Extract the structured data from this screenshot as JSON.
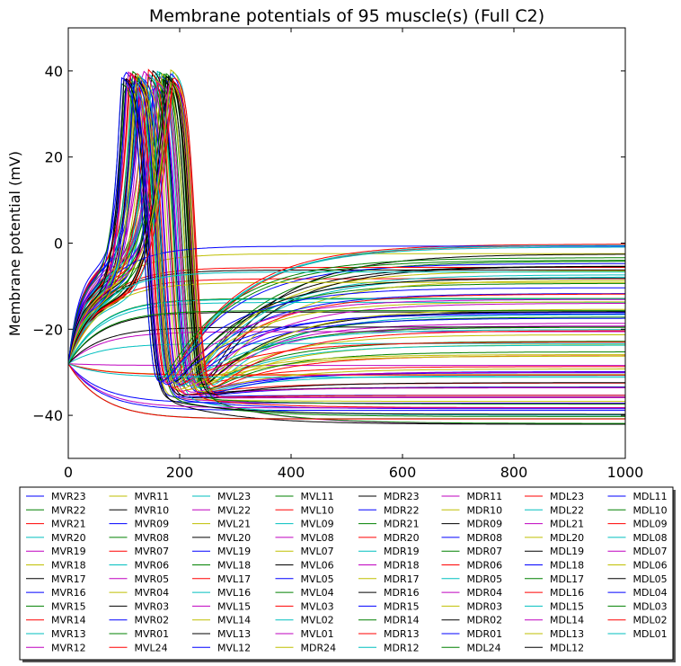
{
  "chart_data": {
    "type": "line",
    "title": "Membrane potentials of 95 muscle(s) (Full C2)",
    "xlabel": "",
    "ylabel": "Membrane potential (mV)",
    "xlim": [
      0,
      1000
    ],
    "ylim": [
      -50,
      50
    ],
    "x_ticks": [
      0,
      200,
      400,
      600,
      800,
      1000
    ],
    "y_ticks": [
      -40,
      -20,
      0,
      20,
      40
    ],
    "x_tick_labels": [
      "0",
      "200",
      "400",
      "600",
      "800",
      "1000"
    ],
    "y_tick_labels": [
      "−40",
      "−20",
      "0",
      "20",
      "40"
    ],
    "grid": false,
    "legend_position": "bottom",
    "legend_columns": 8,
    "color_cycle": [
      "#0000ff",
      "#008000",
      "#ff0000",
      "#00bfbf",
      "#bf00bf",
      "#bfbf00",
      "#000000"
    ],
    "series": [
      {
        "name": "MVR23"
      },
      {
        "name": "MVR22"
      },
      {
        "name": "MVR21"
      },
      {
        "name": "MVR20"
      },
      {
        "name": "MVR19"
      },
      {
        "name": "MVR18"
      },
      {
        "name": "MVR17"
      },
      {
        "name": "MVR16"
      },
      {
        "name": "MVR15"
      },
      {
        "name": "MVR14"
      },
      {
        "name": "MVR13"
      },
      {
        "name": "MVR12"
      },
      {
        "name": "MVR11"
      },
      {
        "name": "MVR10"
      },
      {
        "name": "MVR09"
      },
      {
        "name": "MVR08"
      },
      {
        "name": "MVR07"
      },
      {
        "name": "MVR06"
      },
      {
        "name": "MVR05"
      },
      {
        "name": "MVR04"
      },
      {
        "name": "MVR03"
      },
      {
        "name": "MVR02"
      },
      {
        "name": "MVR01"
      },
      {
        "name": "MVL24"
      },
      {
        "name": "MVL23"
      },
      {
        "name": "MVL22"
      },
      {
        "name": "MVL21"
      },
      {
        "name": "MVL20"
      },
      {
        "name": "MVL19"
      },
      {
        "name": "MVL18"
      },
      {
        "name": "MVL17"
      },
      {
        "name": "MVL16"
      },
      {
        "name": "MVL15"
      },
      {
        "name": "MVL14"
      },
      {
        "name": "MVL13"
      },
      {
        "name": "MVL12"
      },
      {
        "name": "MVL11"
      },
      {
        "name": "MVL10"
      },
      {
        "name": "MVL09"
      },
      {
        "name": "MVL08"
      },
      {
        "name": "MVL07"
      },
      {
        "name": "MVL06"
      },
      {
        "name": "MVL05"
      },
      {
        "name": "MVL04"
      },
      {
        "name": "MVL03"
      },
      {
        "name": "MVL02"
      },
      {
        "name": "MVL01"
      },
      {
        "name": "MDR24"
      },
      {
        "name": "MDR23"
      },
      {
        "name": "MDR22"
      },
      {
        "name": "MDR21"
      },
      {
        "name": "MDR20"
      },
      {
        "name": "MDR19"
      },
      {
        "name": "MDR18"
      },
      {
        "name": "MDR17"
      },
      {
        "name": "MDR16"
      },
      {
        "name": "MDR15"
      },
      {
        "name": "MDR14"
      },
      {
        "name": "MDR13"
      },
      {
        "name": "MDR12"
      },
      {
        "name": "MDR11"
      },
      {
        "name": "MDR10"
      },
      {
        "name": "MDR09"
      },
      {
        "name": "MDR08"
      },
      {
        "name": "MDR07"
      },
      {
        "name": "MDR06"
      },
      {
        "name": "MDR05"
      },
      {
        "name": "MDR04"
      },
      {
        "name": "MDR03"
      },
      {
        "name": "MDR02"
      },
      {
        "name": "MDR01"
      },
      {
        "name": "MDL24"
      },
      {
        "name": "MDL23"
      },
      {
        "name": "MDL22"
      },
      {
        "name": "MDL21"
      },
      {
        "name": "MDL20"
      },
      {
        "name": "MDL19"
      },
      {
        "name": "MDL18"
      },
      {
        "name": "MDL17"
      },
      {
        "name": "MDL16"
      },
      {
        "name": "MDL15"
      },
      {
        "name": "MDL14"
      },
      {
        "name": "MDL13"
      },
      {
        "name": "MDL12"
      },
      {
        "name": "MDL11"
      },
      {
        "name": "MDL10"
      },
      {
        "name": "MDL09"
      },
      {
        "name": "MDL08"
      },
      {
        "name": "MDL07"
      },
      {
        "name": "MDL06"
      },
      {
        "name": "MDL05"
      },
      {
        "name": "MDL04"
      },
      {
        "name": "MDL03"
      },
      {
        "name": "MDL02"
      },
      {
        "name": "MDL01"
      }
    ]
  }
}
